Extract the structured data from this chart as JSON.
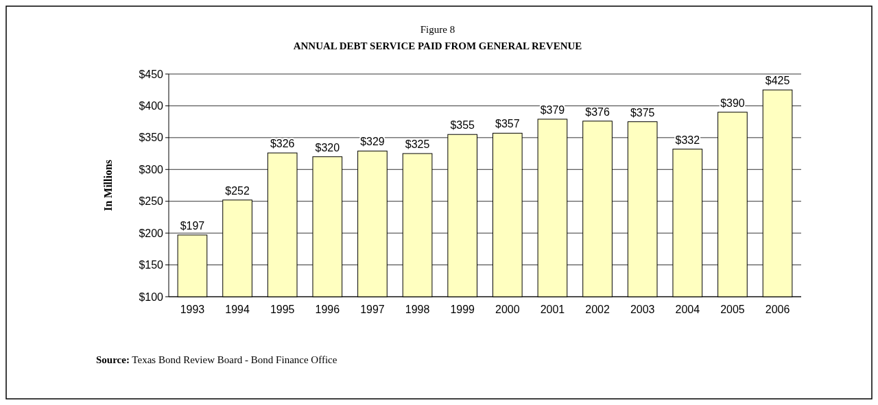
{
  "chart_data": {
    "type": "bar",
    "title": "Figure 8",
    "subtitle": "ANNUAL DEBT SERVICE PAID FROM GENERAL REVENUE",
    "ylabel": "In Millions",
    "categories": [
      "1993",
      "1994",
      "1995",
      "1996",
      "1997",
      "1998",
      "1999",
      "2000",
      "2001",
      "2002",
      "2003",
      "2004",
      "2005",
      "2006"
    ],
    "values": [
      197,
      252,
      326,
      320,
      329,
      325,
      355,
      357,
      379,
      376,
      375,
      332,
      390,
      425
    ],
    "value_labels": [
      "$197",
      "$252",
      "$326",
      "$320",
      "$329",
      "$325",
      "$355",
      "$357",
      "$379",
      "$376",
      "$375",
      "$332",
      "$390",
      "$425"
    ],
    "color": "#ffffc0",
    "ylim": [
      100,
      450
    ],
    "yticks": [
      {
        "value": 100,
        "label": "$100"
      },
      {
        "value": 150,
        "label": "$150"
      },
      {
        "value": 200,
        "label": "$200"
      },
      {
        "value": 250,
        "label": "$250"
      },
      {
        "value": 300,
        "label": "$300"
      },
      {
        "value": 350,
        "label": "$350"
      },
      {
        "value": 400,
        "label": "$400"
      },
      {
        "value": 450,
        "label": "$450"
      }
    ],
    "grid": "y",
    "annotations": [
      "Source: Texas Bond Review Board - Bond Finance Office"
    ]
  }
}
